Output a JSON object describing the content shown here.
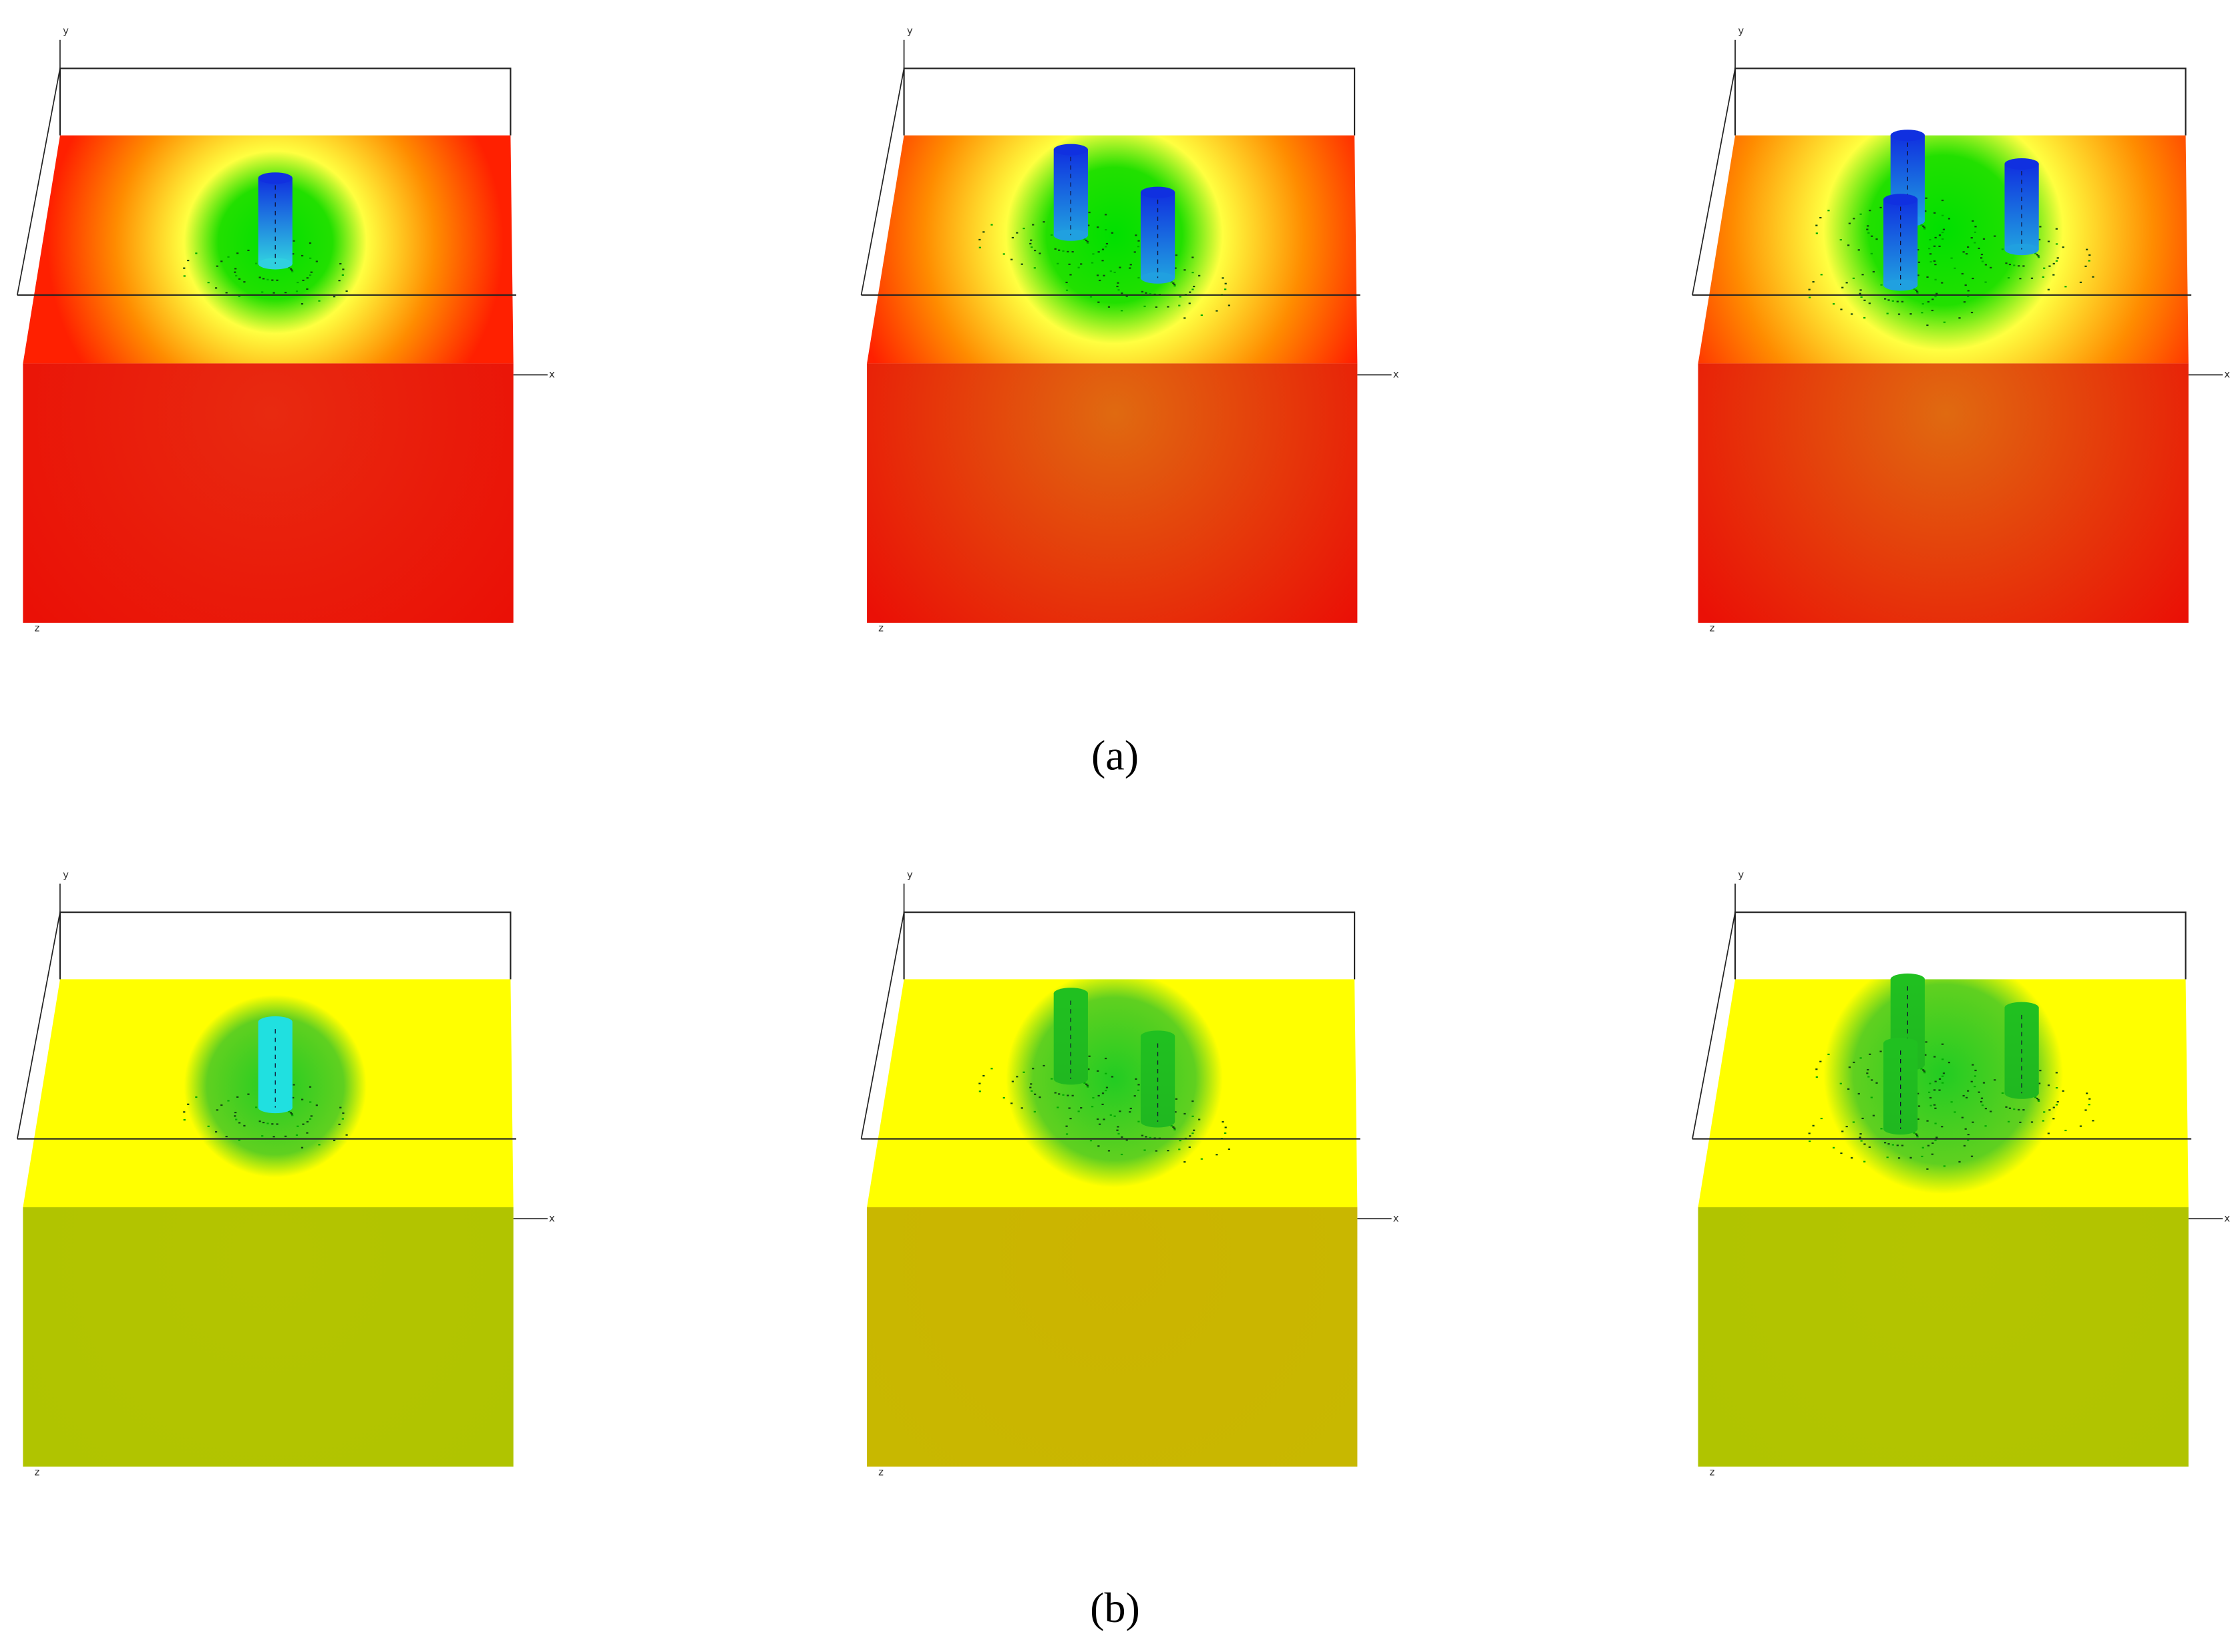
{
  "rows": [
    {
      "caption": "(a)",
      "views": [
        {
          "y_axis": "y",
          "x_axis": "x",
          "z_axis": "z"
        },
        {
          "y_axis": "y",
          "x_axis": "x",
          "z_axis": "z"
        },
        {
          "y_axis": "y",
          "x_axis": "x",
          "z_axis": "z"
        }
      ]
    },
    {
      "caption": "(b)",
      "views": [
        {
          "y_axis": "y",
          "x_axis": "x",
          "z_axis": "z"
        },
        {
          "y_axis": "y",
          "x_axis": "x",
          "z_axis": "z"
        },
        {
          "y_axis": "y",
          "x_axis": "x",
          "z_axis": "z"
        }
      ]
    }
  ]
}
